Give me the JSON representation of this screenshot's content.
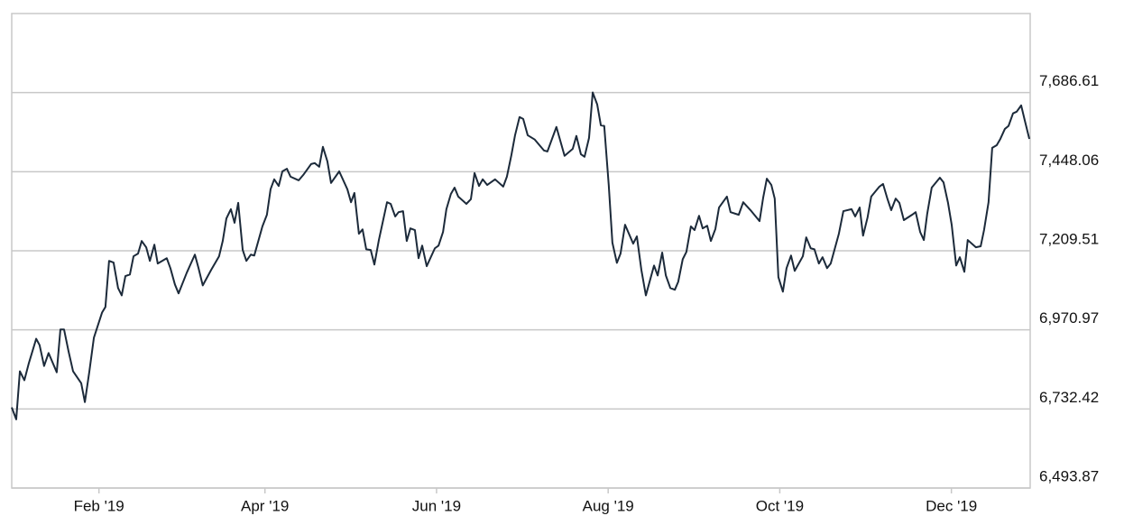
{
  "chart_data": {
    "type": "line",
    "color": "#1c2a3a",
    "grid": true,
    "xlim": [
      0,
      362
    ],
    "ylim": [
      6493.87,
      7925.16
    ],
    "xticks": [
      {
        "value": 31,
        "label": "Feb '19"
      },
      {
        "value": 90,
        "label": "Apr '19"
      },
      {
        "value": 151,
        "label": "Jun '19"
      },
      {
        "value": 212,
        "label": "Aug '19"
      },
      {
        "value": 273,
        "label": "Oct '19"
      },
      {
        "value": 334,
        "label": "Dec '19"
      }
    ],
    "yticks": [
      {
        "value": 6493.87,
        "label": "6,493.87"
      },
      {
        "value": 6732.42,
        "label": "6,732.42"
      },
      {
        "value": 6970.97,
        "label": "6,970.97"
      },
      {
        "value": 7209.51,
        "label": "7,209.51"
      },
      {
        "value": 7448.06,
        "label": "7,448.06"
      },
      {
        "value": 7686.61,
        "label": "7,686.61"
      }
    ],
    "x": [
      0,
      1.6,
      2.9,
      4.5,
      6.1,
      8.7,
      9.9,
      11.5,
      13.1,
      16.0,
      17.3,
      18.6,
      20.2,
      21.8,
      24.7,
      26.0,
      27.6,
      29.2,
      32.1,
      33.3,
      34.6,
      36.2,
      37.8,
      39.1,
      40.4,
      42.0,
      43.3,
      44.9,
      46.2,
      47.8,
      49.1,
      50.7,
      51.9,
      55.1,
      56.4,
      58.0,
      59.3,
      62.2,
      65.1,
      66.4,
      67.9,
      70.9,
      73.7,
      75.0,
      76.3,
      77.9,
      79.2,
      80.5,
      82.1,
      83.4,
      85.0,
      86.2,
      89.1,
      90.7,
      92.0,
      93.3,
      94.9,
      96.2,
      97.8,
      99.1,
      102.0,
      103.6,
      106.4,
      107.7,
      109.3,
      110.6,
      112.2,
      113.5,
      116.4,
      119.3,
      120.6,
      121.8,
      123.4,
      124.7,
      126.0,
      127.6,
      128.9,
      130.5,
      133.4,
      134.7,
      136.3,
      137.5,
      139.1,
      140.4,
      141.7,
      143.3,
      144.6,
      145.9,
      147.5,
      150.4,
      151.7,
      153.3,
      154.5,
      156.1,
      157.4,
      158.7,
      161.6,
      163.2,
      164.5,
      166.1,
      167.4,
      169.0,
      171.8,
      174.7,
      176.0,
      177.6,
      178.9,
      180.5,
      181.8,
      183.4,
      185.9,
      189.2,
      190.4,
      193.6,
      196.5,
      199.4,
      200.7,
      202.3,
      203.6,
      205.2,
      206.5,
      208.1,
      209.4,
      210.6,
      212.2,
      213.5,
      215.1,
      216.4,
      218.0,
      220.9,
      222.2,
      223.8,
      225.4,
      228.3,
      229.6,
      231.2,
      232.5,
      234.1,
      235.7,
      236.9,
      238.5,
      239.8,
      241.4,
      242.7,
      244.3,
      245.6,
      247.2,
      248.5,
      250.1,
      251.4,
      254.2,
      255.5,
      258.4,
      260.0,
      262.9,
      265.8,
      267.1,
      268.4,
      270.0,
      271.2,
      272.5,
      274.1,
      275.4,
      277.0,
      278.3,
      281.2,
      282.4,
      284.0,
      285.3,
      286.9,
      288.2,
      289.8,
      291.1,
      294.0,
      295.6,
      298.5,
      299.8,
      301.4,
      302.6,
      304.2,
      305.5,
      308.4,
      309.7,
      311.3,
      312.6,
      314.2,
      315.5,
      317.1,
      320.0,
      321.3,
      322.9,
      324.2,
      325.4,
      327.0,
      329.9,
      331.2,
      332.8,
      334.1,
      335.7,
      337.0,
      338.6,
      339.8,
      342.7,
      344.4,
      345.6,
      347.2,
      348.5,
      350.1,
      351.4,
      353.0,
      354.3,
      355.9,
      357.2,
      358.8,
      360.1,
      361.7
    ],
    "values": [
      6737,
      6701,
      6846,
      6819,
      6871,
      6944,
      6925,
      6862,
      6901,
      6843,
      6972,
      6972,
      6906,
      6846,
      6810,
      6753,
      6846,
      6947,
      7023,
      7040,
      7179,
      7174,
      7097,
      7075,
      7133,
      7138,
      7193,
      7201,
      7239,
      7220,
      7179,
      7228,
      7171,
      7187,
      7157,
      7108,
      7081,
      7143,
      7198,
      7157,
      7105,
      7152,
      7193,
      7239,
      7307,
      7335,
      7294,
      7354,
      7212,
      7179,
      7198,
      7195,
      7283,
      7318,
      7395,
      7425,
      7405,
      7449,
      7457,
      7433,
      7422,
      7438,
      7471,
      7474,
      7463,
      7523,
      7479,
      7414,
      7449,
      7395,
      7356,
      7384,
      7261,
      7274,
      7214,
      7212,
      7168,
      7242,
      7356,
      7351,
      7313,
      7326,
      7329,
      7239,
      7277,
      7272,
      7187,
      7225,
      7163,
      7217,
      7225,
      7266,
      7335,
      7381,
      7400,
      7373,
      7351,
      7365,
      7444,
      7405,
      7425,
      7408,
      7425,
      7403,
      7433,
      7498,
      7558,
      7613,
      7607,
      7558,
      7545,
      7512,
      7509,
      7583,
      7496,
      7517,
      7556,
      7501,
      7493,
      7550,
      7687,
      7651,
      7588,
      7586,
      7408,
      7234,
      7173,
      7201,
      7288,
      7231,
      7253,
      7152,
      7075,
      7165,
      7135,
      7204,
      7135,
      7097,
      7092,
      7116,
      7184,
      7206,
      7283,
      7272,
      7315,
      7277,
      7285,
      7239,
      7275,
      7340,
      7373,
      7326,
      7318,
      7356,
      7329,
      7299,
      7370,
      7427,
      7408,
      7367,
      7130,
      7086,
      7157,
      7195,
      7149,
      7193,
      7250,
      7217,
      7214,
      7171,
      7190,
      7157,
      7171,
      7261,
      7329,
      7335,
      7313,
      7340,
      7255,
      7310,
      7373,
      7403,
      7411,
      7365,
      7332,
      7367,
      7354,
      7302,
      7318,
      7326,
      7266,
      7242,
      7321,
      7400,
      7430,
      7416,
      7354,
      7288,
      7165,
      7190,
      7146,
      7242,
      7220,
      7223,
      7272,
      7356,
      7520,
      7528,
      7547,
      7577,
      7586,
      7624,
      7629,
      7648,
      7602,
      7547
    ]
  }
}
